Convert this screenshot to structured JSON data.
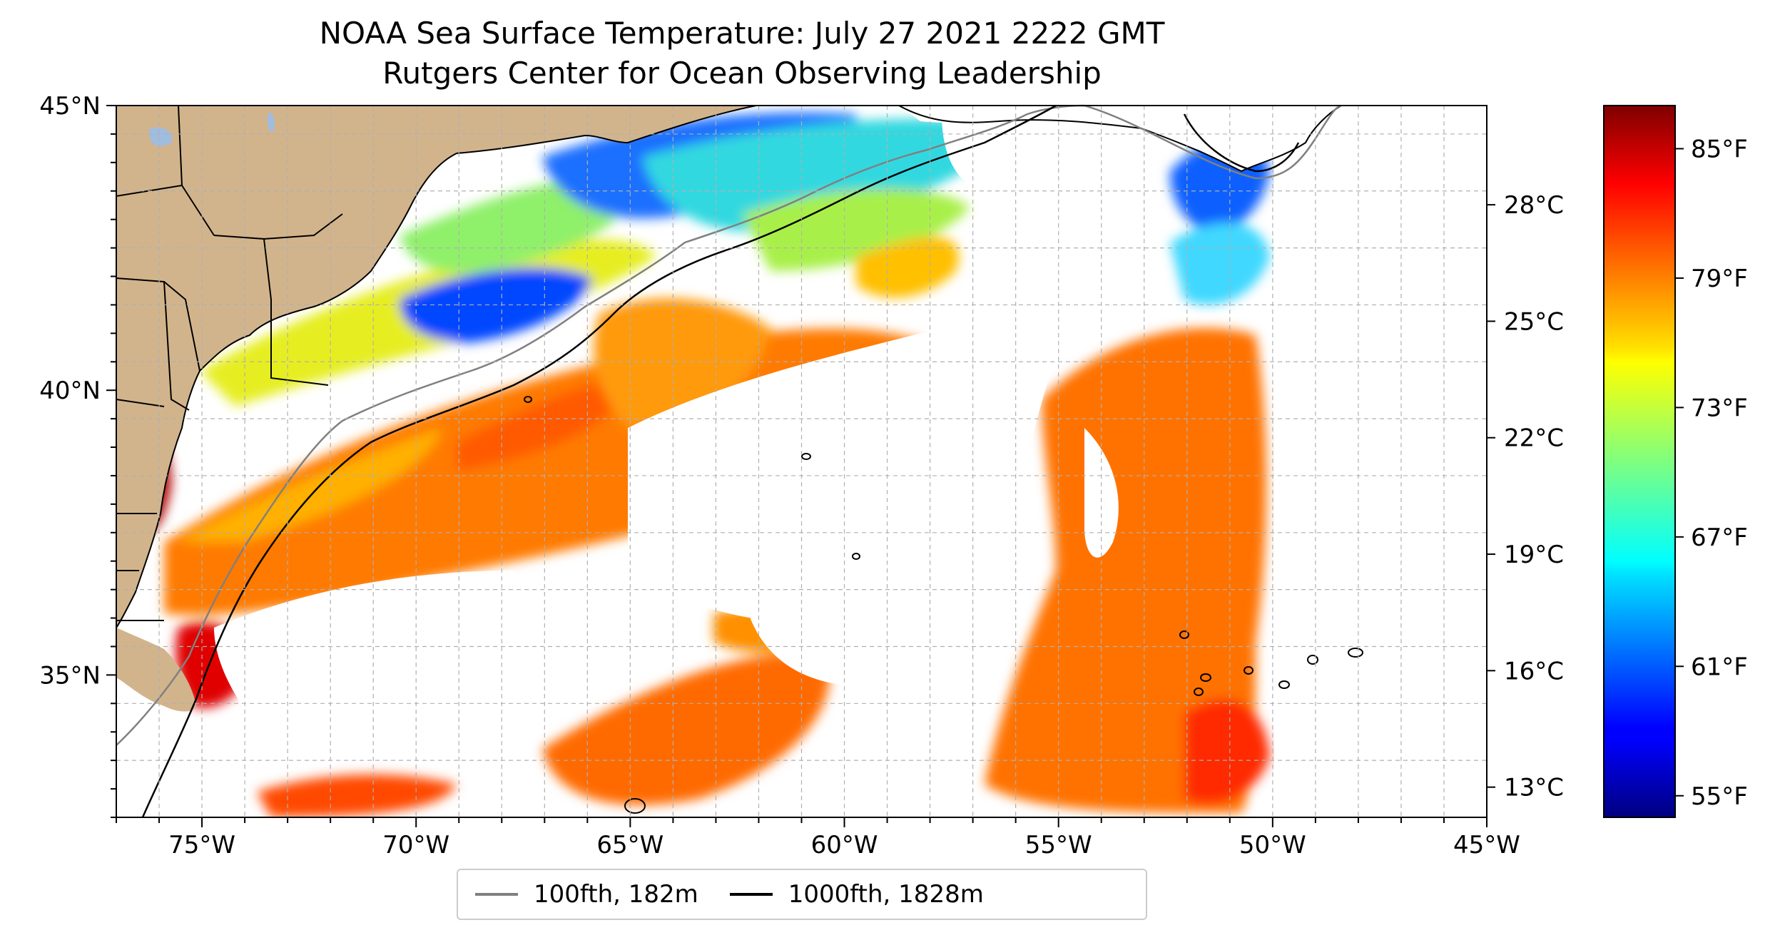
{
  "title": {
    "line1": "NOAA Sea Surface Temperature: July 27 2021 2222 GMT",
    "line2": "Rutgers Center for Ocean Observing Leadership"
  },
  "map": {
    "lon_range": [
      -77,
      -45
    ],
    "lat_range": [
      32.5,
      45
    ],
    "gridlines": true,
    "lon_tick_labels": [
      "75°W",
      "70°W",
      "65°W",
      "60°W",
      "55°W",
      "50°W",
      "45°W"
    ],
    "lon_tick_values": [
      -75,
      -70,
      -65,
      -60,
      -55,
      -50,
      -45
    ],
    "lat_tick_labels": [
      "45°N",
      "40°N",
      "35°N"
    ],
    "lat_tick_values": [
      45,
      40,
      35
    ],
    "land_color": "#d2b48c",
    "data_east_edge_lon": -50
  },
  "legend": {
    "placement": "bottom-center, below map",
    "items": [
      {
        "label": "100fth, 182m",
        "color": "#808080"
      },
      {
        "label": "1000fth, 1828m",
        "color": "#000000"
      }
    ]
  },
  "colorbar": {
    "colormap": "jet",
    "range_f": [
      54,
      87
    ],
    "fahrenheit_labels": [
      "85°F",
      "79°F",
      "73°F",
      "67°F",
      "61°F",
      "55°F"
    ],
    "fahrenheit_values": [
      85,
      79,
      73,
      67,
      61,
      55
    ],
    "celsius_labels": [
      "28°C",
      "25°C",
      "22°C",
      "19°C",
      "16°C",
      "13°C"
    ],
    "celsius_values": [
      28,
      25,
      22,
      19,
      16,
      13
    ]
  }
}
